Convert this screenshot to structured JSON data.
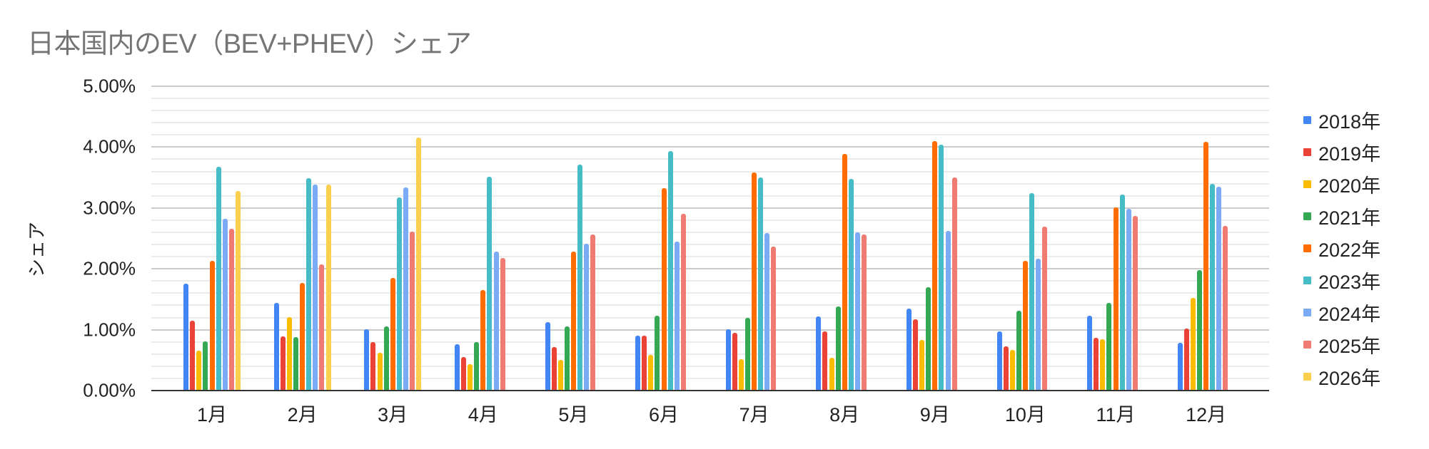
{
  "chart_data": {
    "type": "bar",
    "title": "日本国内のEV（BEV+PHEV）シェア",
    "xlabel": "",
    "ylabel": "シェア",
    "ylim": [
      0,
      5.0
    ],
    "y_unit": "%",
    "yticks": [
      "0.00%",
      "1.00%",
      "2.00%",
      "3.00%",
      "4.00%",
      "5.00%"
    ],
    "grid": true,
    "minor_grid_step": 0.2,
    "legend_position": "right",
    "categories": [
      "1月",
      "2月",
      "3月",
      "4月",
      "5月",
      "6月",
      "7月",
      "8月",
      "9月",
      "10月",
      "11月",
      "12月"
    ],
    "series": [
      {
        "name": "2018年",
        "color": "#4285f4",
        "values": [
          1.76,
          1.44,
          1.01,
          0.76,
          1.12,
          0.9,
          1.01,
          1.22,
          1.35,
          0.97,
          1.23,
          0.79
        ]
      },
      {
        "name": "2019年",
        "color": "#ea4335",
        "values": [
          1.15,
          0.89,
          0.8,
          0.55,
          0.71,
          0.9,
          0.95,
          0.97,
          1.17,
          0.73,
          0.87,
          1.02
        ]
      },
      {
        "name": "2020年",
        "color": "#fbbc04",
        "values": [
          0.66,
          1.21,
          0.62,
          0.43,
          0.5,
          0.59,
          0.52,
          0.54,
          0.83,
          0.67,
          0.84,
          1.52
        ]
      },
      {
        "name": "2021年",
        "color": "#34a853",
        "values": [
          0.81,
          0.88,
          1.05,
          0.8,
          1.05,
          1.23,
          1.19,
          1.38,
          1.7,
          1.31,
          1.44,
          1.98
        ]
      },
      {
        "name": "2022年",
        "color": "#ff6d01",
        "values": [
          2.13,
          1.77,
          1.85,
          1.65,
          2.28,
          3.32,
          3.58,
          3.89,
          4.1,
          2.13,
          3.01,
          4.09
        ]
      },
      {
        "name": "2023年",
        "color": "#46bdc6",
        "values": [
          3.68,
          3.49,
          3.17,
          3.51,
          3.71,
          3.94,
          3.5,
          3.48,
          4.04,
          3.24,
          3.22,
          3.4
        ]
      },
      {
        "name": "2024年",
        "color": "#7baaf7",
        "values": [
          2.82,
          3.38,
          3.34,
          2.28,
          2.41,
          2.45,
          2.59,
          2.6,
          2.62,
          2.17,
          2.99,
          3.35
        ]
      },
      {
        "name": "2025年",
        "color": "#f07b72",
        "values": [
          2.66,
          2.07,
          2.61,
          2.18,
          2.56,
          2.91,
          2.36,
          2.56,
          3.5,
          2.69,
          2.87,
          2.71
        ]
      },
      {
        "name": "2026年",
        "color": "#fcd04f",
        "values": [
          3.28,
          3.38,
          4.16,
          null,
          null,
          null,
          null,
          null,
          null,
          null,
          null,
          null
        ]
      }
    ]
  }
}
